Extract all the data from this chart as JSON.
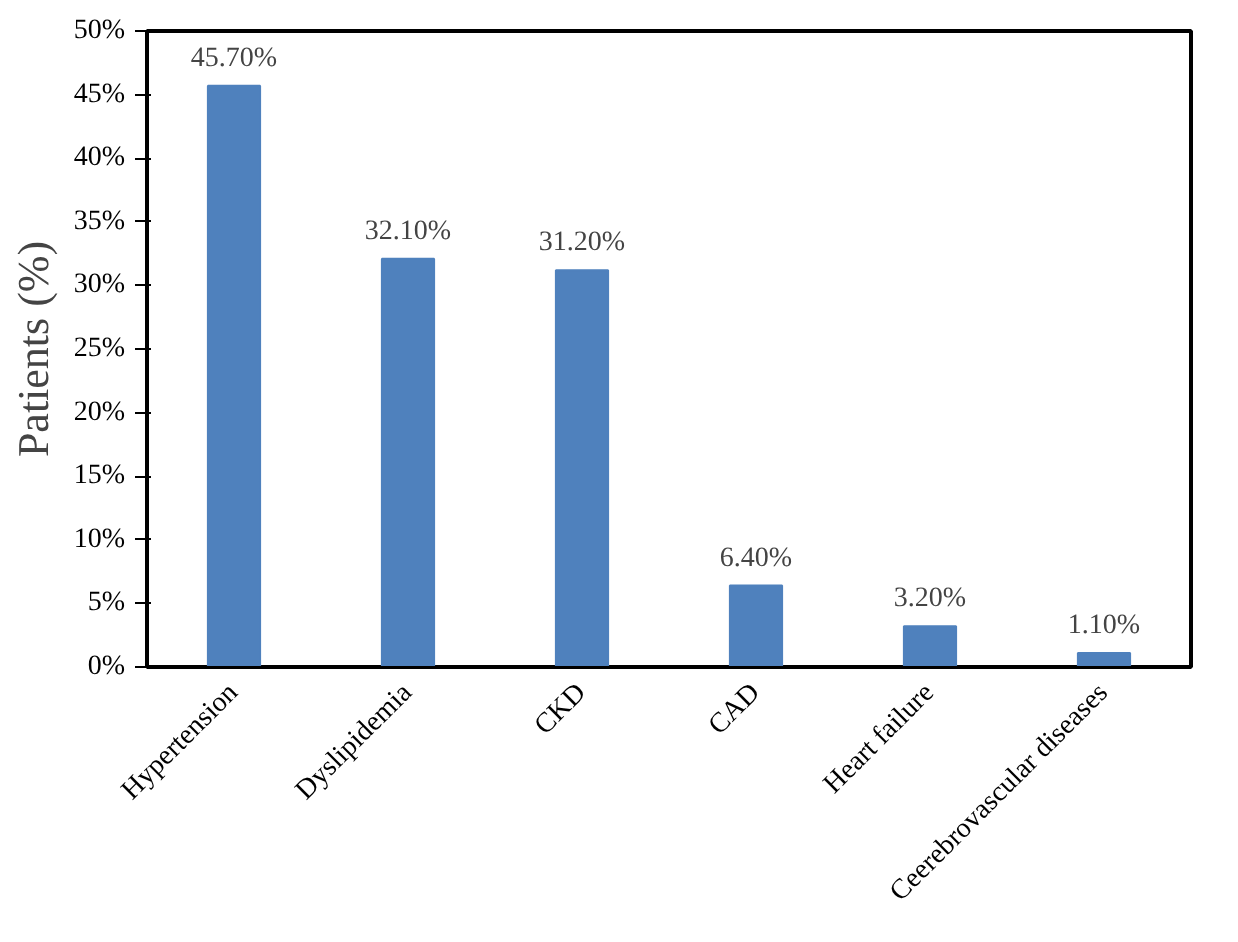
{
  "chart_data": {
    "type": "bar",
    "ylabel": "Patients (%)",
    "categories": [
      "Hypertension",
      "Dyslipidemia",
      "CKD",
      "CAD",
      "Heart failure",
      "Ceerebrovascular diseases"
    ],
    "values": [
      45.7,
      32.1,
      31.2,
      6.4,
      3.2,
      1.1
    ],
    "value_labels": [
      "45.70%",
      "32.10%",
      "31.20%",
      "6.40%",
      "3.20%",
      "1.10%"
    ],
    "color": "#4f81bd",
    "ylim": [
      0,
      50
    ],
    "yticks": [
      {
        "value": 0,
        "label": "0%"
      },
      {
        "value": 5,
        "label": "5%"
      },
      {
        "value": 10,
        "label": "10%"
      },
      {
        "value": 15,
        "label": "15%"
      },
      {
        "value": 20,
        "label": "20%"
      },
      {
        "value": 25,
        "label": "25%"
      },
      {
        "value": 30,
        "label": "30%"
      },
      {
        "value": 35,
        "label": "35%"
      },
      {
        "value": 40,
        "label": "40%"
      },
      {
        "value": 45,
        "label": "45%"
      },
      {
        "value": 50,
        "label": "50%"
      }
    ],
    "grid": false
  }
}
